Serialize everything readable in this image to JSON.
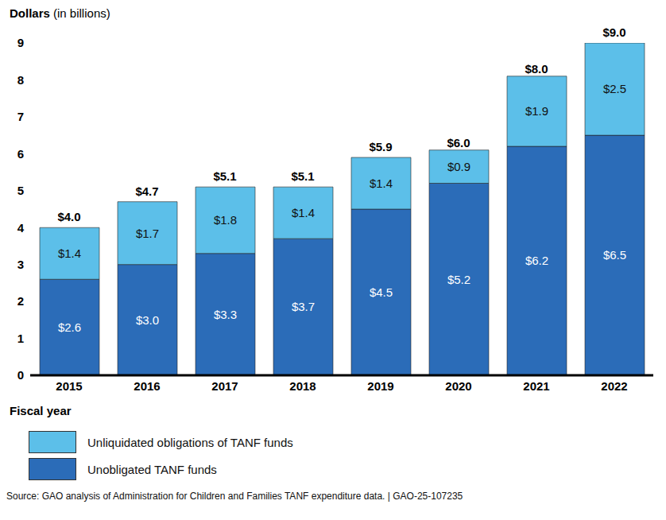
{
  "chart_data": {
    "type": "bar",
    "stacked": true,
    "data_labels": true,
    "grid": false,
    "legend": "bottom",
    "y_label": "Dollars (in billions)",
    "x_label": "Fiscal year",
    "source": "Source: GAO analysis of Administration for Children and Families TANF expenditure data.  |  GAO-25-107235",
    "categories": [
      "2015",
      "2016",
      "2017",
      "2018",
      "2019",
      "2020",
      "2021",
      "2022"
    ],
    "series": [
      {
        "name": "Unobligated TANF funds",
        "color": "#2b6cb8",
        "values": [
          2.6,
          3.0,
          3.3,
          3.7,
          4.5,
          5.2,
          6.2,
          6.5
        ],
        "value_labels": [
          "$2.6",
          "$3.0",
          "$3.3",
          "$3.7",
          "$4.5",
          "$5.2",
          "$6.2",
          "$6.5"
        ]
      },
      {
        "name": "Unliquidated obligations of TANF funds",
        "color": "#5cbfe9",
        "values": [
          1.4,
          1.7,
          1.8,
          1.4,
          1.4,
          0.9,
          1.9,
          2.5
        ],
        "value_labels": [
          "$1.4",
          "$1.7",
          "$1.8",
          "$1.4",
          "$1.4",
          "$0.9",
          "$1.9",
          "$2.5"
        ]
      }
    ],
    "totals": [
      4.0,
      4.7,
      5.1,
      5.1,
      5.9,
      6.0,
      8.0,
      9.0
    ],
    "total_labels": [
      "$4.0",
      "$4.7",
      "$5.1",
      "$5.1",
      "$5.9",
      "$6.0",
      "$8.0",
      "$9.0"
    ],
    "ylim": [
      0,
      9
    ],
    "yticks": [
      0,
      1,
      2,
      3,
      4,
      5,
      6,
      7,
      8,
      9
    ]
  }
}
